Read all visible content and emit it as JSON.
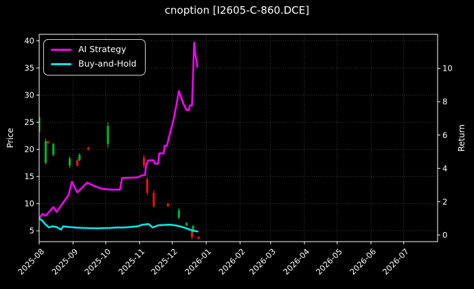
{
  "chart_data": {
    "type": "line",
    "subtype": "equity-curves-with-candlesticks",
    "title": "cnoption [I2605-C-860.DCE]",
    "xlabel": "",
    "ylabel_left": "Price",
    "ylabel_right": "Return",
    "legend_position": "upper-left",
    "grid": true,
    "x_axis": {
      "tick_labels": [
        "2025-08",
        "2025-09",
        "2025-10",
        "2025-11",
        "2025-12",
        "2026-01",
        "2026-02",
        "2026-03",
        "2026-04",
        "2026-05",
        "2026-06",
        "2026-07"
      ],
      "tick_days": [
        0,
        31,
        61,
        92,
        122,
        153,
        184,
        212,
        243,
        273,
        304,
        334
      ],
      "domain_days": [
        0,
        365
      ],
      "tick_rotation_deg": 45
    },
    "y_axis_price": {
      "ticks": [
        5,
        10,
        15,
        20,
        25,
        30,
        35,
        40
      ],
      "lim": [
        3.0,
        41.2
      ]
    },
    "y_axis_return": {
      "ticks": [
        0,
        2,
        4,
        6,
        8,
        10
      ],
      "lim": [
        -0.4,
        12.05
      ]
    },
    "series": [
      {
        "name": "AI Strategy",
        "color": "#ff00ff",
        "axis": "return",
        "points": [
          [
            0,
            1.0
          ],
          [
            3,
            1.26
          ],
          [
            6,
            1.15
          ],
          [
            13,
            1.68
          ],
          [
            16,
            1.38
          ],
          [
            22,
            1.95
          ],
          [
            27,
            2.4
          ],
          [
            30,
            3.2
          ],
          [
            35,
            2.55
          ],
          [
            44,
            3.15
          ],
          [
            50,
            2.95
          ],
          [
            57,
            2.78
          ],
          [
            65,
            2.72
          ],
          [
            74,
            2.72
          ],
          [
            76,
            3.42
          ],
          [
            90,
            3.45
          ],
          [
            95,
            3.6
          ],
          [
            97,
            3.6
          ],
          [
            98,
            4.2
          ],
          [
            100,
            4.48
          ],
          [
            105,
            4.48
          ],
          [
            106,
            4.28
          ],
          [
            109,
            4.28
          ],
          [
            110,
            4.9
          ],
          [
            114,
            4.9
          ],
          [
            115,
            5.36
          ],
          [
            117,
            5.36
          ],
          [
            120,
            6.15
          ],
          [
            123,
            6.9
          ],
          [
            126,
            7.9
          ],
          [
            128,
            8.65
          ],
          [
            132,
            7.9
          ],
          [
            135,
            7.5
          ],
          [
            137,
            7.5
          ],
          [
            138,
            7.78
          ],
          [
            140,
            7.78
          ],
          [
            142,
            11.55
          ],
          [
            143,
            10.9
          ],
          [
            145,
            10.1
          ]
        ]
      },
      {
        "name": "Buy-and-Hold",
        "color": "#00e8e8",
        "axis": "return",
        "points": [
          [
            0,
            1.0
          ],
          [
            3,
            0.85
          ],
          [
            6,
            0.62
          ],
          [
            9,
            0.45
          ],
          [
            12,
            0.52
          ],
          [
            16,
            0.48
          ],
          [
            20,
            0.32
          ],
          [
            22,
            0.52
          ],
          [
            27,
            0.48
          ],
          [
            33,
            0.45
          ],
          [
            40,
            0.42
          ],
          [
            52,
            0.4
          ],
          [
            65,
            0.42
          ],
          [
            71,
            0.45
          ],
          [
            78,
            0.45
          ],
          [
            90,
            0.52
          ],
          [
            95,
            0.62
          ],
          [
            100,
            0.66
          ],
          [
            104,
            0.45
          ],
          [
            109,
            0.58
          ],
          [
            115,
            0.6
          ],
          [
            120,
            0.62
          ],
          [
            126,
            0.56
          ],
          [
            130,
            0.5
          ],
          [
            134,
            0.42
          ],
          [
            138,
            0.32
          ],
          [
            141,
            0.26
          ],
          [
            145,
            0.21
          ]
        ]
      }
    ],
    "candles": [
      {
        "day": 0,
        "low": 23.0,
        "high": 40.2,
        "open": 23.2,
        "close": 26.0,
        "dir": "up"
      },
      {
        "day": 6,
        "low": 17.2,
        "high": 22.0,
        "open": 17.5,
        "close": 21.5,
        "dir": "up"
      },
      {
        "day": 8,
        "low": 21.0,
        "high": 21.6,
        "open": 21.5,
        "close": 21.1,
        "dir": "down"
      },
      {
        "day": 13,
        "low": 18.7,
        "high": 21.2,
        "open": 19.0,
        "close": 21.0,
        "dir": "up"
      },
      {
        "day": 28,
        "low": 16.5,
        "high": 18.7,
        "open": 17.0,
        "close": 18.3,
        "dir": "up"
      },
      {
        "day": 35,
        "low": 16.8,
        "high": 18.4,
        "open": 18.0,
        "close": 17.0,
        "dir": "down"
      },
      {
        "day": 37,
        "low": 17.8,
        "high": 19.3,
        "open": 18.0,
        "close": 19.0,
        "dir": "up"
      },
      {
        "day": 45,
        "low": 19.8,
        "high": 20.5,
        "open": 20.3,
        "close": 20.0,
        "dir": "down"
      },
      {
        "day": 63,
        "low": 20.3,
        "high": 25.0,
        "open": 21.0,
        "close": 24.3,
        "dir": "up"
      },
      {
        "day": 96,
        "low": 16.5,
        "high": 19.0,
        "open": 18.5,
        "close": 17.0,
        "dir": "down"
      },
      {
        "day": 99,
        "low": 11.5,
        "high": 14.9,
        "open": 14.5,
        "close": 12.0,
        "dir": "down"
      },
      {
        "day": 105,
        "low": 9.2,
        "high": 12.5,
        "open": 12.0,
        "close": 9.5,
        "dir": "down"
      },
      {
        "day": 118,
        "low": 9.4,
        "high": 10.2,
        "open": 10.0,
        "close": 9.5,
        "dir": "down"
      },
      {
        "day": 128,
        "low": 7.1,
        "high": 9.2,
        "open": 7.4,
        "close": 8.8,
        "dir": "up"
      },
      {
        "day": 135,
        "low": 5.9,
        "high": 6.6,
        "open": 6.0,
        "close": 6.4,
        "dir": "up"
      },
      {
        "day": 140,
        "low": 3.4,
        "high": 5.2,
        "open": 5.0,
        "close": 3.8,
        "dir": "down"
      },
      {
        "day": 141,
        "low": 4.6,
        "high": 6.1,
        "open": 4.8,
        "close": 5.9,
        "dir": "up"
      },
      {
        "day": 146,
        "low": 3.4,
        "high": 4.0,
        "open": 3.9,
        "close": 3.5,
        "dir": "down"
      }
    ],
    "colors": {
      "background": "#000000",
      "text": "#ffffff",
      "frame": "#ffffff",
      "grid": "#4a4a4a",
      "candle_up": "#00b32a",
      "candle_down": "#e81010",
      "ai_strategy": "#ff00ff",
      "buy_and_hold": "#00e8e8"
    }
  }
}
